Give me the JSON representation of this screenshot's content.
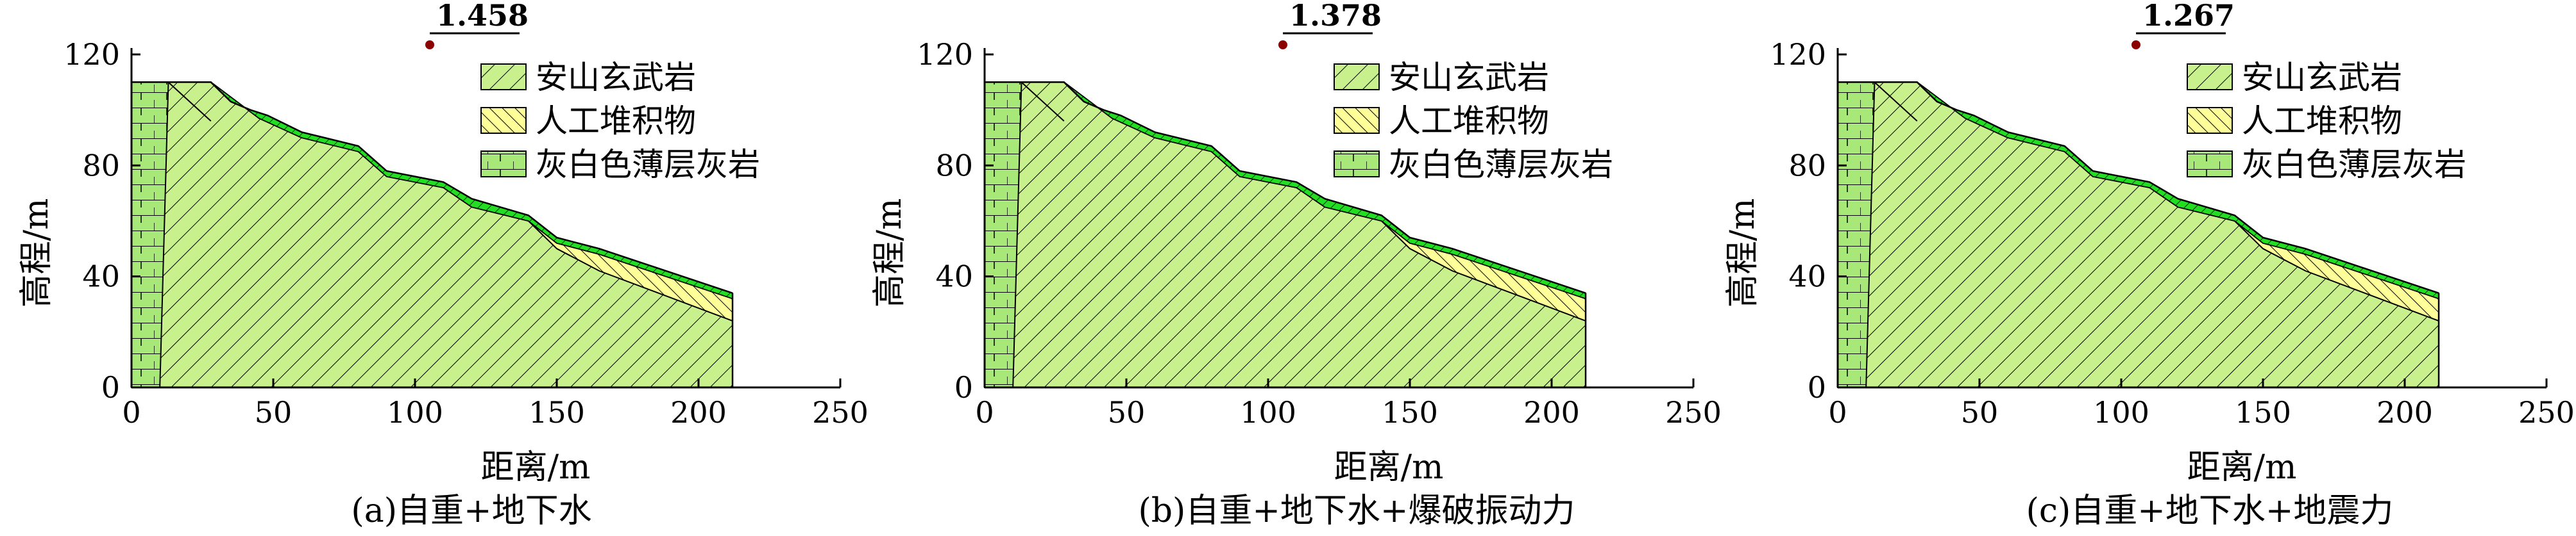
{
  "axes": {
    "xlabel": "距离/m",
    "ylabel": "高程/m",
    "x_ticks": [
      0,
      50,
      100,
      150,
      200,
      250
    ],
    "y_ticks": [
      0,
      40,
      80,
      120
    ],
    "xlim": [
      0,
      250
    ],
    "ylim": [
      0,
      120
    ]
  },
  "legend": [
    {
      "label": "安山玄武岩",
      "pattern": "hatch-green"
    },
    {
      "label": "人工堆积物",
      "pattern": "hatch-yellow"
    },
    {
      "label": "灰白色薄层灰岩",
      "pattern": "grid-green"
    }
  ],
  "colors": {
    "basalt_fill": "#c8f08c",
    "fill_deposit": "#ffff99",
    "fill_limestone": "#a8e878",
    "fill_topsoil": "#22dd22",
    "marker": "#8b0000"
  },
  "profile": {
    "slope_surface": [
      [
        0,
        110
      ],
      [
        28,
        110
      ],
      [
        45,
        97
      ],
      [
        60,
        90
      ],
      [
        80,
        85
      ],
      [
        90,
        76
      ],
      [
        110,
        72
      ],
      [
        120,
        65
      ],
      [
        140,
        60
      ],
      [
        150,
        52
      ],
      [
        165,
        48
      ],
      [
        212,
        32
      ]
    ],
    "topsoil_top": [
      [
        0,
        110
      ],
      [
        28,
        110
      ],
      [
        35,
        103
      ],
      [
        42,
        100
      ],
      [
        48,
        98
      ],
      [
        60,
        92
      ],
      [
        80,
        87
      ],
      [
        90,
        78
      ],
      [
        110,
        74
      ],
      [
        120,
        68
      ],
      [
        140,
        62
      ],
      [
        150,
        54
      ],
      [
        165,
        50
      ],
      [
        212,
        34
      ]
    ],
    "deposit_top": [
      [
        165,
        48
      ],
      [
        212,
        36
      ]
    ],
    "limestone_right": [
      [
        13,
        110
      ],
      [
        10,
        0
      ]
    ]
  },
  "panels": [
    {
      "id": "a",
      "factor": "1.458",
      "caption": "(a)自重+地下水"
    },
    {
      "id": "b",
      "factor": "1.378",
      "caption": "(b)自重+地下水+爆破振动力"
    },
    {
      "id": "c",
      "factor": "1.267",
      "caption": "(c)自重+地下水+地震力"
    }
  ]
}
